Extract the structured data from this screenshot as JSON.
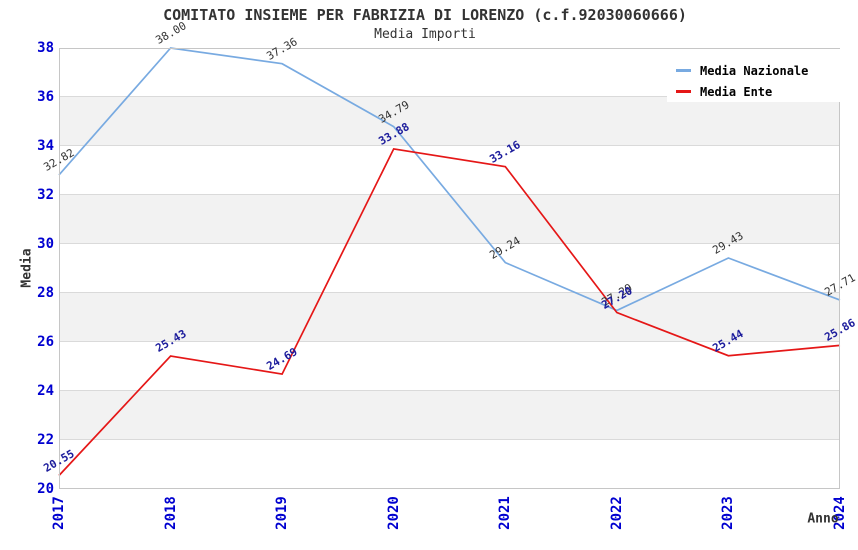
{
  "page": {
    "title": "COMITATO INSIEME PER FABRIZIA DI LORENZO (c.f.92030060666)",
    "subtitle": "Media Importi"
  },
  "chart_data": {
    "type": "line",
    "title": "COMITATO INSIEME PER FABRIZIA DI LORENZO (c.f.92030060666)",
    "subtitle": "Media Importi",
    "x_label": "Anno",
    "y_label": "Media",
    "x": [
      "2017",
      "2018",
      "2019",
      "2020",
      "2021",
      "2022",
      "2023",
      "2024"
    ],
    "series": [
      {
        "name": "Media Nazionale",
        "color": "#78AAE1",
        "label_color": "#333333",
        "label_weight": "normal",
        "values": [
          32.82,
          38.0,
          37.36,
          34.79,
          29.24,
          27.29,
          29.43,
          27.71
        ]
      },
      {
        "name": "Media Ente",
        "color": "#E51717",
        "label_color": "#1C1C9C",
        "label_weight": "bold",
        "values": [
          20.55,
          25.43,
          24.69,
          33.88,
          33.16,
          27.2,
          25.44,
          25.86
        ]
      }
    ],
    "ylim": [
      20,
      38
    ],
    "ytick_step": 2,
    "y_ticks": [
      "20",
      "22",
      "24",
      "26",
      "28",
      "30",
      "32",
      "34",
      "36",
      "38"
    ],
    "legend_position": "top-right",
    "grid": "alternating horizontal bands every 2 units",
    "colors": {
      "tick_text": "#0000D0",
      "axis_text": "#333333",
      "band": "#F2F2F2",
      "gridline": "#DADADA",
      "plot_border": "#C6C6C6",
      "legend_text": "#000000"
    }
  }
}
